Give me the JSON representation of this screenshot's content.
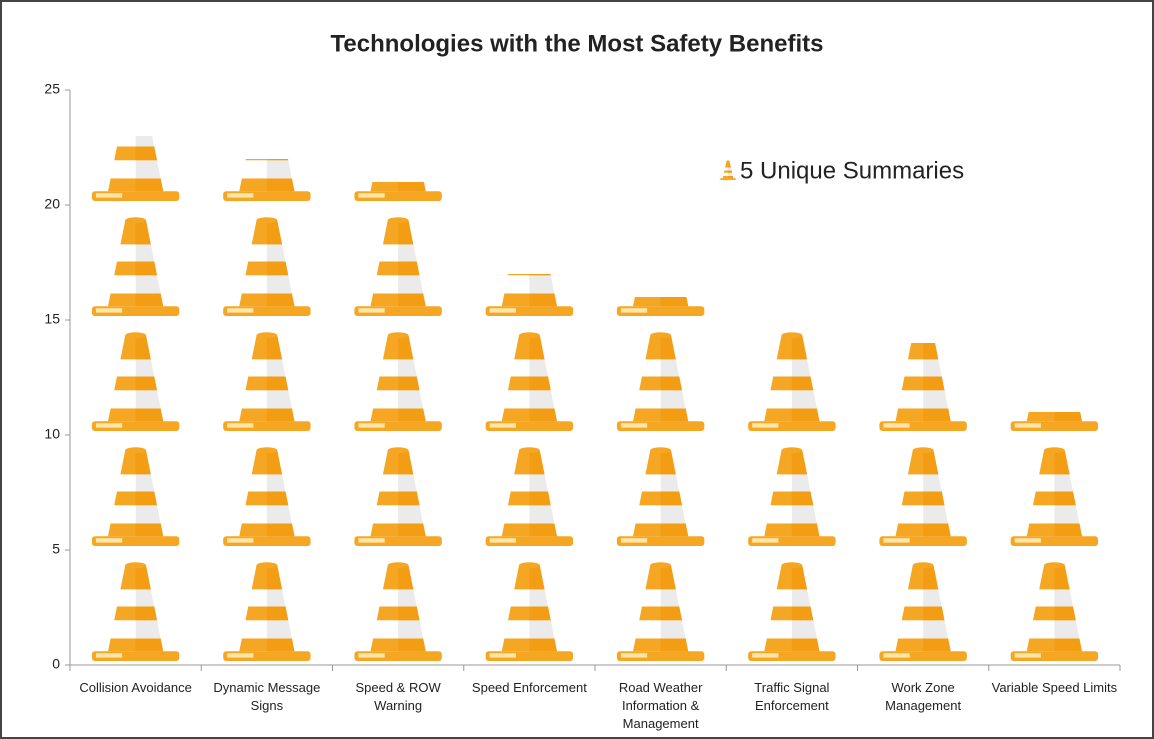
{
  "chart_data": {
    "type": "pictograph-bar",
    "title": "Technologies with the Most Safety Benefits",
    "categories": [
      "Collision Avoidance",
      "Dynamic Message Signs",
      "Speed & ROW Warning",
      "Speed Enforcement",
      "Road Weather Information & Management",
      "Traffic Signal Enforcement",
      "Work Zone Management",
      "Variable Speed Limits"
    ],
    "series": [
      {
        "name": "5 Unique Summaries",
        "color": "#f5a623",
        "values": [
          23,
          22,
          21,
          17,
          16,
          15,
          14,
          11
        ]
      }
    ],
    "ylim": [
      0,
      25
    ],
    "yticks": [
      0,
      5,
      10,
      15,
      20,
      25
    ],
    "grid": false,
    "legend": "top-right"
  }
}
